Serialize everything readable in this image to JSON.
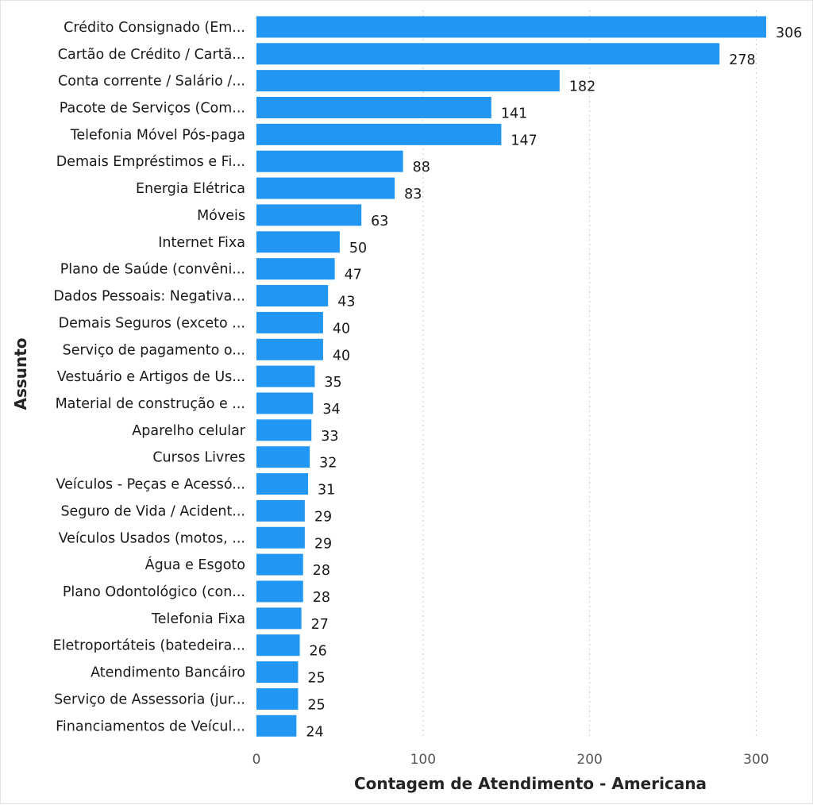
{
  "chart_data": {
    "type": "bar",
    "orientation": "horizontal",
    "xlabel": "Contagem de Atendimento - Americana",
    "ylabel": "Assunto",
    "xlim": [
      0,
      306
    ],
    "xticks": [
      0,
      100,
      200,
      300
    ],
    "grid": "vertical-dotted",
    "bar_color": "#2196F3",
    "categories": [
      "Crédito Consignado (Em...",
      "Cartão de Crédito / Cartã...",
      "Conta corrente / Salário /...",
      "Pacote de Serviços (Com...",
      "Telefonia Móvel Pós-paga",
      "Demais Empréstimos e Fi...",
      "Energia Elétrica",
      "Móveis",
      "Internet Fixa",
      "Plano de Saúde (convêni...",
      "Dados Pessoais: Negativa...",
      "Demais Seguros (exceto ...",
      "Serviço de pagamento o...",
      "Vestuário e Artigos de Us...",
      "Material de construção e ...",
      "Aparelho celular",
      "Cursos Livres",
      "Veículos - Peças e Acessó...",
      "Seguro de Vida / Acident...",
      "Veículos Usados (motos, ...",
      "Água e Esgoto",
      "Plano Odontológico (con...",
      "Telefonia Fixa",
      "Eletroportáteis (batedeira...",
      "Atendimento Bancáiro",
      "Serviço de Assessoria (jur...",
      "Financiamentos de Veícul..."
    ],
    "values": [
      306,
      278,
      182,
      141,
      147,
      88,
      83,
      63,
      50,
      47,
      43,
      40,
      40,
      35,
      34,
      33,
      32,
      31,
      29,
      29,
      28,
      28,
      27,
      26,
      25,
      25,
      24
    ]
  }
}
